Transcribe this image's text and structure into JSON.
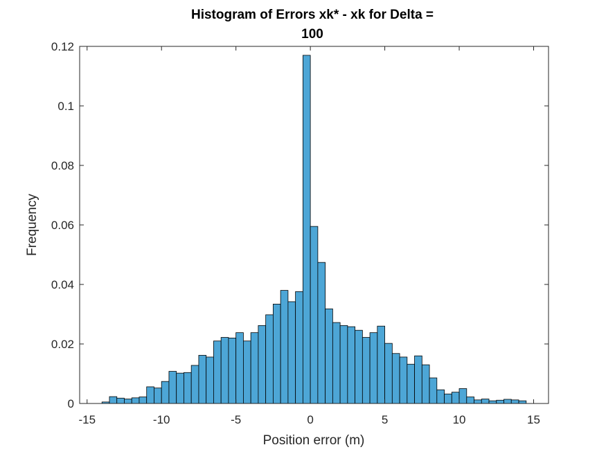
{
  "chart_data": {
    "type": "bar",
    "title_lines": [
      "Histogram of Errors xk* - xk for Delta =",
      "100"
    ],
    "xlabel": "Position error (m)",
    "ylabel": "Frequency",
    "xlim": [
      -15.5,
      16
    ],
    "ylim": [
      0,
      0.12
    ],
    "xticks": [
      -15,
      -10,
      -5,
      0,
      5,
      10,
      15
    ],
    "xtick_labels": [
      "-15",
      "-10",
      "-5",
      "0",
      "5",
      "10",
      "15"
    ],
    "yticks": [
      0,
      0.02,
      0.04,
      0.06,
      0.08,
      0.1,
      0.12
    ],
    "ytick_labels": [
      "0",
      "0.02",
      "0.04",
      "0.06",
      "0.08",
      "0.1",
      "0.12"
    ],
    "bin_width": 0.5,
    "bin_start": -14,
    "values": [
      0.0005,
      0.0023,
      0.0018,
      0.0015,
      0.0019,
      0.0022,
      0.0056,
      0.0052,
      0.0074,
      0.0108,
      0.0102,
      0.0104,
      0.0128,
      0.0162,
      0.0156,
      0.021,
      0.0222,
      0.022,
      0.0238,
      0.021,
      0.0238,
      0.0262,
      0.0298,
      0.0334,
      0.038,
      0.0342,
      0.0376,
      0.117,
      0.0595,
      0.0474,
      0.0318,
      0.0272,
      0.0262,
      0.0258,
      0.0246,
      0.0222,
      0.0238,
      0.026,
      0.0202,
      0.0168,
      0.0156,
      0.0132,
      0.016,
      0.013,
      0.0086,
      0.0046,
      0.0032,
      0.0038,
      0.005,
      0.0022,
      0.0012,
      0.0015,
      0.0009,
      0.0011,
      0.0014,
      0.0012,
      0.0009
    ],
    "bar_color": "#4da6d6",
    "bar_edge_color": "#000000",
    "grid": false,
    "box": true
  }
}
